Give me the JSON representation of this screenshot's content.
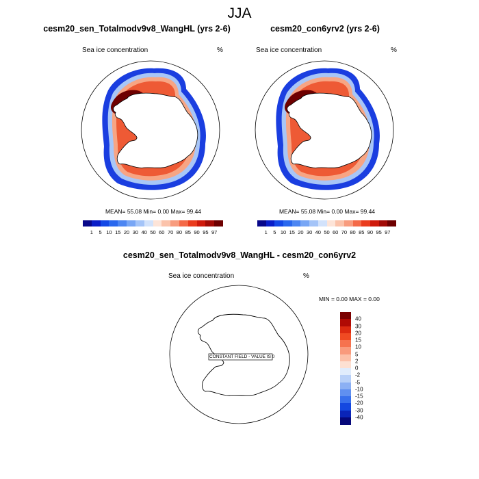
{
  "title": "JJA",
  "panels": [
    {
      "title": "cesm20_sen_Totalmodv9v8_WangHL (yrs 2-6)",
      "left_label": "Sea ice concentration",
      "right_label": "%",
      "stats": "MEAN=  55.08  Min=   0.00  Max=  99.44"
    },
    {
      "title": "cesm20_con6yrv2 (yrs 2-6)",
      "left_label": "Sea ice concentration",
      "right_label": "%",
      "stats": "MEAN=  55.08  Min=   0.00  Max=  99.44"
    }
  ],
  "diff_panel": {
    "title": "cesm20_sen_Totalmodv9v8_WangHL - cesm20_con6yrv2",
    "left_label": "Sea ice concentration",
    "right_label": "%",
    "stats": "MIN =   0.00 MAX =   0.00",
    "constant_label": "CONSTANT FIELD - VALUE IS 0"
  },
  "colorbar_concentration": {
    "labels": [
      "1",
      "5",
      "10",
      "15",
      "20",
      "30",
      "40",
      "50",
      "60",
      "70",
      "80",
      "85",
      "90",
      "95",
      "97"
    ],
    "colors": [
      "#08088a",
      "#0a1ec8",
      "#1448e6",
      "#2a68ee",
      "#4d86f2",
      "#78a6f5",
      "#a4c4f8",
      "#d2e2fb",
      "#fde4d8",
      "#fbc3ab",
      "#f89c7e",
      "#f46a48",
      "#ea3c1e",
      "#cf1a0c",
      "#a20b06",
      "#6e0000"
    ]
  },
  "colorbar_difference": {
    "labels": [
      "40",
      "30",
      "20",
      "15",
      "10",
      "5",
      "2",
      "0",
      "-2",
      "-5",
      "-10",
      "-15",
      "-20",
      "-30",
      "-40"
    ],
    "colors": [
      "#7a0000",
      "#b00a04",
      "#dc2a10",
      "#f04a22",
      "#f6724e",
      "#f99a7c",
      "#fcc0a8",
      "#fde0d2",
      "#e0ecfc",
      "#b8d0f8",
      "#8cb0f4",
      "#6090f0",
      "#3870ec",
      "#1448e0",
      "#0a24b8",
      "#06087a"
    ]
  },
  "colors": {
    "ice_high": "#6e0000",
    "ice_low": "#08088a",
    "land": "#ffffff"
  }
}
